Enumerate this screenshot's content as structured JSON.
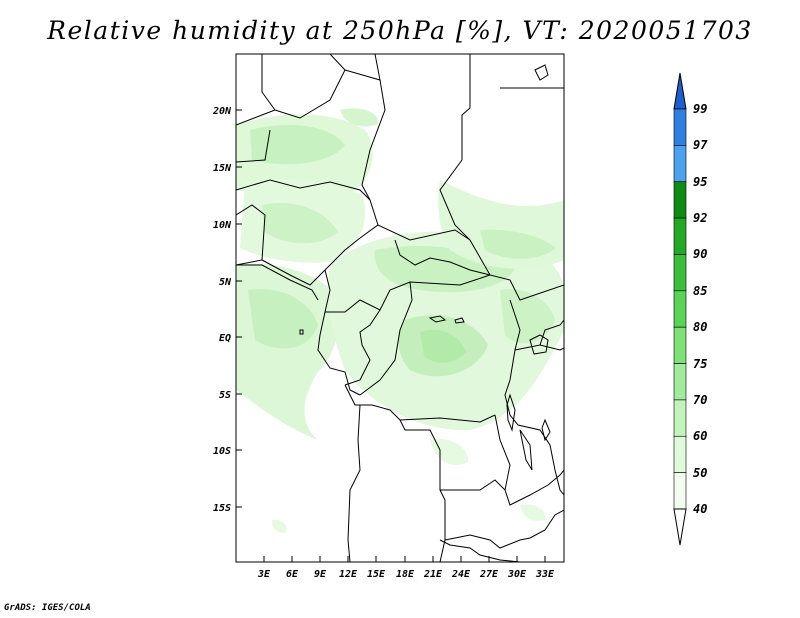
{
  "title": "Relative humidity at 250hPa [%], VT: 2020051703",
  "credit": "GrADS: IGES/COLA",
  "map": {
    "lat_labels": [
      "20N",
      "15N",
      "10N",
      "5N",
      "EQ",
      "5S",
      "10S",
      "15S"
    ],
    "lon_labels": [
      "3E",
      "6E",
      "9E",
      "12E",
      "15E",
      "18E",
      "21E",
      "24E",
      "27E",
      "30E",
      "33E"
    ],
    "variable": "relative humidity",
    "level": "250hPa",
    "unit": "%"
  },
  "colorbar": {
    "levels": [
      "99",
      "97",
      "95",
      "92",
      "90",
      "85",
      "80",
      "75",
      "70",
      "60",
      "50",
      "40"
    ],
    "colors": [
      "#1e5fcc",
      "#2e7fe0",
      "#4da2ee",
      "#0f8a14",
      "#23a828",
      "#3dbe3f",
      "#5ad358",
      "#7fe07a",
      "#a3eb9c",
      "#c4f3bd",
      "#defadb",
      "#f2fdf0"
    ]
  }
}
